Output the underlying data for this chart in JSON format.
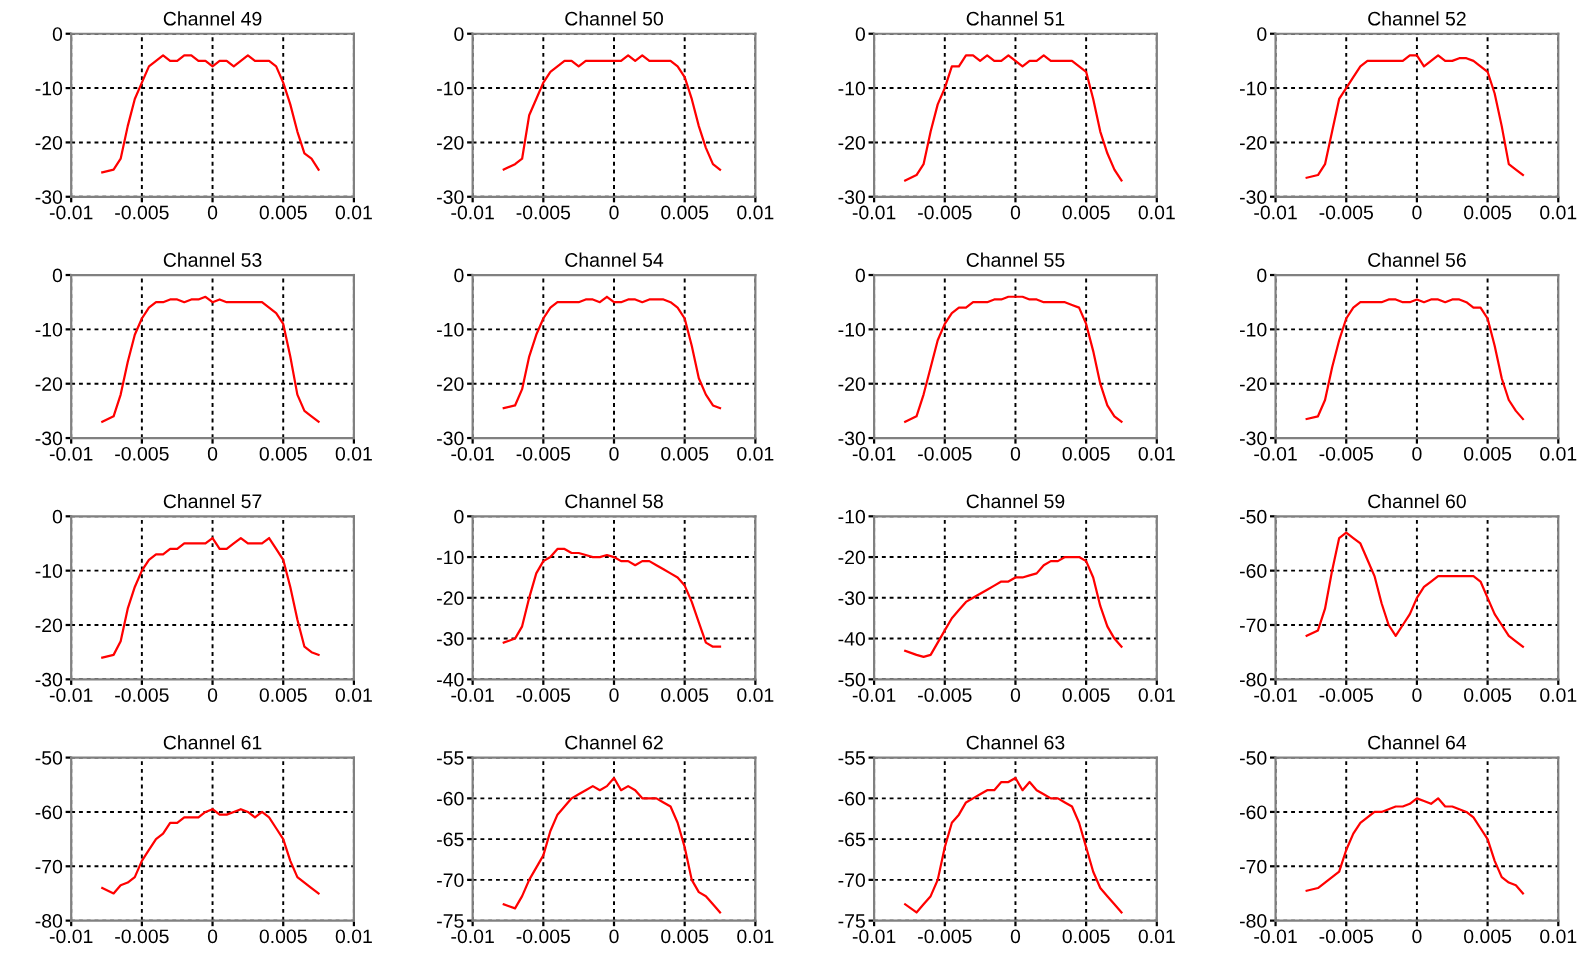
{
  "chart_data": [
    {
      "type": "line",
      "title": "Channel 49",
      "color": "#ff0000",
      "grid": true,
      "xlim": [
        -0.01,
        0.01
      ],
      "xticks": [
        -0.01,
        -0.005,
        0,
        0.005,
        0.01
      ],
      "ylim": [
        -30,
        0
      ],
      "yticks": [
        -30,
        -20,
        -10,
        0
      ],
      "x": [
        -0.0078,
        -0.007,
        -0.0065,
        -0.006,
        -0.0055,
        -0.005,
        -0.0045,
        -0.004,
        -0.0035,
        -0.003,
        -0.0025,
        -0.002,
        -0.0015,
        -0.001,
        -0.0005,
        0,
        0.0005,
        0.001,
        0.0015,
        0.002,
        0.0025,
        0.003,
        0.0035,
        0.004,
        0.0045,
        0.005,
        0.0055,
        0.006,
        0.0065,
        0.007,
        0.0075
      ],
      "values": [
        -25.5,
        -25,
        -23,
        -17,
        -12,
        -9,
        -6,
        -5,
        -4,
        -5,
        -5,
        -4,
        -4,
        -5,
        -5,
        -6,
        -5,
        -5,
        -6,
        -5,
        -4,
        -5,
        -5,
        -5,
        -6,
        -9,
        -13,
        -18,
        -22,
        -23,
        -25
      ]
    },
    {
      "type": "line",
      "title": "Channel 50",
      "color": "#ff0000",
      "grid": true,
      "xlim": [
        -0.01,
        0.01
      ],
      "xticks": [
        -0.01,
        -0.005,
        0,
        0.005,
        0.01
      ],
      "ylim": [
        -30,
        0
      ],
      "yticks": [
        -30,
        -20,
        -10,
        0
      ],
      "x": [
        -0.0078,
        -0.007,
        -0.0065,
        -0.006,
        -0.0055,
        -0.005,
        -0.0045,
        -0.004,
        -0.0035,
        -0.003,
        -0.0025,
        -0.002,
        -0.0015,
        -0.001,
        -0.0005,
        0,
        0.0005,
        0.001,
        0.0015,
        0.002,
        0.0025,
        0.003,
        0.0035,
        0.004,
        0.0045,
        0.005,
        0.0055,
        0.006,
        0.0065,
        0.007,
        0.0075
      ],
      "values": [
        -25,
        -24,
        -23,
        -15,
        -12,
        -9,
        -7,
        -6,
        -5,
        -5,
        -6,
        -5,
        -5,
        -5,
        -5,
        -5,
        -5,
        -4,
        -5,
        -4,
        -5,
        -5,
        -5,
        -5,
        -6,
        -8,
        -12,
        -17,
        -21,
        -24,
        -25
      ]
    },
    {
      "type": "line",
      "title": "Channel 51",
      "color": "#ff0000",
      "grid": true,
      "xlim": [
        -0.01,
        0.01
      ],
      "xticks": [
        -0.01,
        -0.005,
        0,
        0.005,
        0.01
      ],
      "ylim": [
        -30,
        0
      ],
      "yticks": [
        -30,
        -20,
        -10,
        0
      ],
      "x": [
        -0.0078,
        -0.007,
        -0.0065,
        -0.006,
        -0.0055,
        -0.005,
        -0.0045,
        -0.004,
        -0.0035,
        -0.003,
        -0.0025,
        -0.002,
        -0.0015,
        -0.001,
        -0.0005,
        0,
        0.0005,
        0.001,
        0.0015,
        0.002,
        0.0025,
        0.003,
        0.0035,
        0.004,
        0.0045,
        0.005,
        0.0055,
        0.006,
        0.0065,
        0.007,
        0.0075
      ],
      "values": [
        -27,
        -26,
        -24,
        -18,
        -13,
        -10,
        -6,
        -6,
        -4,
        -4,
        -5,
        -4,
        -5,
        -5,
        -4,
        -5,
        -6,
        -5,
        -5,
        -4,
        -5,
        -5,
        -5,
        -5,
        -6,
        -7,
        -12,
        -18,
        -22,
        -25,
        -27
      ]
    },
    {
      "type": "line",
      "title": "Channel 52",
      "color": "#ff0000",
      "grid": true,
      "xlim": [
        -0.01,
        0.01
      ],
      "xticks": [
        -0.01,
        -0.005,
        0,
        0.005,
        0.01
      ],
      "ylim": [
        -30,
        0
      ],
      "yticks": [
        -30,
        -20,
        -10,
        0
      ],
      "x": [
        -0.0078,
        -0.007,
        -0.0065,
        -0.006,
        -0.0055,
        -0.005,
        -0.0045,
        -0.004,
        -0.0035,
        -0.003,
        -0.0025,
        -0.002,
        -0.0015,
        -0.001,
        -0.0005,
        0,
        0.0005,
        0.001,
        0.0015,
        0.002,
        0.0025,
        0.003,
        0.0035,
        0.004,
        0.0045,
        0.005,
        0.0055,
        0.006,
        0.0065,
        0.007,
        0.0075
      ],
      "values": [
        -26.5,
        -26,
        -24,
        -18,
        -12,
        -10,
        -8,
        -6,
        -5,
        -5,
        -5,
        -5,
        -5,
        -5,
        -4,
        -4,
        -6,
        -5,
        -4,
        -5,
        -5,
        -4.5,
        -4.5,
        -5,
        -6,
        -7,
        -11,
        -17,
        -24,
        -25,
        -26
      ]
    },
    {
      "type": "line",
      "title": "Channel 53",
      "color": "#ff0000",
      "grid": true,
      "xlim": [
        -0.01,
        0.01
      ],
      "xticks": [
        -0.01,
        -0.005,
        0,
        0.005,
        0.01
      ],
      "ylim": [
        -30,
        0
      ],
      "yticks": [
        -30,
        -20,
        -10,
        0
      ],
      "x": [
        -0.0078,
        -0.007,
        -0.0065,
        -0.006,
        -0.0055,
        -0.005,
        -0.0045,
        -0.004,
        -0.0035,
        -0.003,
        -0.0025,
        -0.002,
        -0.0015,
        -0.001,
        -0.0005,
        0,
        0.0005,
        0.001,
        0.0015,
        0.002,
        0.0025,
        0.003,
        0.0035,
        0.004,
        0.0045,
        0.005,
        0.0055,
        0.006,
        0.0065,
        0.007,
        0.0075
      ],
      "values": [
        -27,
        -26,
        -22,
        -16,
        -11,
        -8,
        -6,
        -5,
        -5,
        -4.5,
        -4.5,
        -5,
        -4.5,
        -4.5,
        -4,
        -5,
        -4.5,
        -5,
        -5,
        -5,
        -5,
        -5,
        -5,
        -6,
        -7,
        -9,
        -15,
        -22,
        -25,
        -26,
        -27
      ]
    },
    {
      "type": "line",
      "title": "Channel 54",
      "color": "#ff0000",
      "grid": true,
      "xlim": [
        -0.01,
        0.01
      ],
      "xticks": [
        -0.01,
        -0.005,
        0,
        0.005,
        0.01
      ],
      "ylim": [
        -30,
        0
      ],
      "yticks": [
        -30,
        -20,
        -10,
        0
      ],
      "x": [
        -0.0078,
        -0.007,
        -0.0065,
        -0.006,
        -0.0055,
        -0.005,
        -0.0045,
        -0.004,
        -0.0035,
        -0.003,
        -0.0025,
        -0.002,
        -0.0015,
        -0.001,
        -0.0005,
        0,
        0.0005,
        0.001,
        0.0015,
        0.002,
        0.0025,
        0.003,
        0.0035,
        0.004,
        0.0045,
        0.005,
        0.0055,
        0.006,
        0.0065,
        0.007,
        0.0075
      ],
      "values": [
        -24.5,
        -24,
        -21,
        -15,
        -11,
        -8,
        -6,
        -5,
        -5,
        -5,
        -5,
        -4.5,
        -4.5,
        -5,
        -4,
        -5,
        -5,
        -4.5,
        -4.5,
        -5,
        -4.5,
        -4.5,
        -4.5,
        -5,
        -6,
        -8,
        -13,
        -19,
        -22,
        -24,
        -24.5
      ]
    },
    {
      "type": "line",
      "title": "Channel 55",
      "color": "#ff0000",
      "grid": true,
      "xlim": [
        -0.01,
        0.01
      ],
      "xticks": [
        -0.01,
        -0.005,
        0,
        0.005,
        0.01
      ],
      "ylim": [
        -30,
        0
      ],
      "yticks": [
        -30,
        -20,
        -10,
        0
      ],
      "x": [
        -0.0078,
        -0.007,
        -0.0065,
        -0.006,
        -0.0055,
        -0.005,
        -0.0045,
        -0.004,
        -0.0035,
        -0.003,
        -0.0025,
        -0.002,
        -0.0015,
        -0.001,
        -0.0005,
        0,
        0.0005,
        0.001,
        0.0015,
        0.002,
        0.0025,
        0.003,
        0.0035,
        0.004,
        0.0045,
        0.005,
        0.0055,
        0.006,
        0.0065,
        0.007,
        0.0075
      ],
      "values": [
        -27,
        -26,
        -22,
        -17,
        -12,
        -9,
        -7,
        -6,
        -6,
        -5,
        -5,
        -5,
        -4.5,
        -4.5,
        -4,
        -4,
        -4,
        -4.5,
        -4.5,
        -5,
        -5,
        -5,
        -5,
        -5.5,
        -6,
        -9,
        -14,
        -20,
        -24,
        -26,
        -27
      ]
    },
    {
      "type": "line",
      "title": "Channel 56",
      "color": "#ff0000",
      "grid": true,
      "xlim": [
        -0.01,
        0.01
      ],
      "xticks": [
        -0.01,
        -0.005,
        0,
        0.005,
        0.01
      ],
      "ylim": [
        -30,
        0
      ],
      "yticks": [
        -30,
        -20,
        -10,
        0
      ],
      "x": [
        -0.0078,
        -0.007,
        -0.0065,
        -0.006,
        -0.0055,
        -0.005,
        -0.0045,
        -0.004,
        -0.0035,
        -0.003,
        -0.0025,
        -0.002,
        -0.0015,
        -0.001,
        -0.0005,
        0,
        0.0005,
        0.001,
        0.0015,
        0.002,
        0.0025,
        0.003,
        0.0035,
        0.004,
        0.0045,
        0.005,
        0.0055,
        0.006,
        0.0065,
        0.007,
        0.0075
      ],
      "values": [
        -26.5,
        -26,
        -23,
        -17,
        -12,
        -8,
        -6,
        -5,
        -5,
        -5,
        -5,
        -4.5,
        -4.5,
        -5,
        -5,
        -4.5,
        -5,
        -4.5,
        -4.5,
        -5,
        -4.5,
        -4.5,
        -5,
        -6,
        -6,
        -8,
        -13,
        -19,
        -23,
        -25,
        -26.5
      ]
    },
    {
      "type": "line",
      "title": "Channel 57",
      "color": "#ff0000",
      "grid": true,
      "xlim": [
        -0.01,
        0.01
      ],
      "xticks": [
        -0.01,
        -0.005,
        0,
        0.005,
        0.01
      ],
      "ylim": [
        -30,
        0
      ],
      "yticks": [
        -30,
        -20,
        -10,
        0
      ],
      "x": [
        -0.0078,
        -0.007,
        -0.0065,
        -0.006,
        -0.0055,
        -0.005,
        -0.0045,
        -0.004,
        -0.0035,
        -0.003,
        -0.0025,
        -0.002,
        -0.0015,
        -0.001,
        -0.0005,
        0,
        0.0005,
        0.001,
        0.0015,
        0.002,
        0.0025,
        0.003,
        0.0035,
        0.004,
        0.0045,
        0.005,
        0.0055,
        0.006,
        0.0065,
        0.007,
        0.0075
      ],
      "values": [
        -26,
        -25.5,
        -23,
        -17,
        -13,
        -10,
        -8,
        -7,
        -7,
        -6,
        -6,
        -5,
        -5,
        -5,
        -5,
        -4,
        -6,
        -6,
        -5,
        -4,
        -5,
        -5,
        -5,
        -4,
        -6,
        -8,
        -13,
        -19,
        -24,
        -25,
        -25.5
      ]
    },
    {
      "type": "line",
      "title": "Channel 58",
      "color": "#ff0000",
      "grid": true,
      "xlim": [
        -0.01,
        0.01
      ],
      "xticks": [
        -0.01,
        -0.005,
        0,
        0.005,
        0.01
      ],
      "ylim": [
        -40,
        0
      ],
      "yticks": [
        -40,
        -30,
        -20,
        -10,
        0
      ],
      "x": [
        -0.0078,
        -0.007,
        -0.0065,
        -0.006,
        -0.0055,
        -0.005,
        -0.0045,
        -0.004,
        -0.0035,
        -0.003,
        -0.0025,
        -0.002,
        -0.0015,
        -0.001,
        -0.0005,
        0,
        0.0005,
        0.001,
        0.0015,
        0.002,
        0.0025,
        0.003,
        0.0035,
        0.004,
        0.0045,
        0.005,
        0.0055,
        0.006,
        0.0065,
        0.007,
        0.0075
      ],
      "values": [
        -31,
        -30,
        -27,
        -20,
        -14,
        -11,
        -10,
        -8,
        -8,
        -9,
        -9,
        -9.5,
        -10,
        -10,
        -9.5,
        -10,
        -11,
        -11,
        -12,
        -11,
        -11,
        -12,
        -13,
        -14,
        -15,
        -17,
        -21,
        -26,
        -31,
        -32,
        -32
      ]
    },
    {
      "type": "line",
      "title": "Channel 59",
      "color": "#ff0000",
      "grid": true,
      "xlim": [
        -0.01,
        0.01
      ],
      "xticks": [
        -0.01,
        -0.005,
        0,
        0.005,
        0.01
      ],
      "ylim": [
        -50,
        -10
      ],
      "yticks": [
        -50,
        -40,
        -30,
        -20,
        -10
      ],
      "x": [
        -0.0078,
        -0.007,
        -0.0065,
        -0.006,
        -0.0055,
        -0.005,
        -0.0045,
        -0.004,
        -0.0035,
        -0.003,
        -0.0025,
        -0.002,
        -0.0015,
        -0.001,
        -0.0005,
        0,
        0.0005,
        0.001,
        0.0015,
        0.002,
        0.0025,
        0.003,
        0.0035,
        0.004,
        0.0045,
        0.005,
        0.0055,
        0.006,
        0.0065,
        0.007,
        0.0075
      ],
      "values": [
        -43,
        -44,
        -44.5,
        -44,
        -41,
        -38,
        -35,
        -33,
        -31,
        -30,
        -29,
        -28,
        -27,
        -26,
        -26,
        -25,
        -25,
        -24.5,
        -24,
        -22,
        -21,
        -21,
        -20,
        -20,
        -20,
        -21,
        -25,
        -32,
        -37,
        -40,
        -42
      ]
    },
    {
      "type": "line",
      "title": "Channel 60",
      "color": "#ff0000",
      "grid": true,
      "xlim": [
        -0.01,
        0.01
      ],
      "xticks": [
        -0.01,
        -0.005,
        0,
        0.005,
        0.01
      ],
      "ylim": [
        -80,
        -50
      ],
      "yticks": [
        -80,
        -70,
        -60,
        -50
      ],
      "x": [
        -0.0078,
        -0.007,
        -0.0065,
        -0.006,
        -0.0055,
        -0.005,
        -0.0045,
        -0.004,
        -0.0035,
        -0.003,
        -0.0025,
        -0.002,
        -0.0015,
        -0.001,
        -0.0005,
        0,
        0.0005,
        0.001,
        0.0015,
        0.002,
        0.0025,
        0.003,
        0.0035,
        0.004,
        0.0045,
        0.005,
        0.0055,
        0.006,
        0.0065,
        0.007,
        0.0075
      ],
      "values": [
        -72,
        -71,
        -67,
        -60,
        -54,
        -53,
        -54,
        -55,
        -58,
        -61,
        -66,
        -70,
        -72,
        -70,
        -68,
        -65,
        -63,
        -62,
        -61,
        -61,
        -61,
        -61,
        -61,
        -61,
        -62,
        -65,
        -68,
        -70,
        -72,
        -73,
        -74
      ]
    },
    {
      "type": "line",
      "title": "Channel 61",
      "color": "#ff0000",
      "grid": true,
      "xlim": [
        -0.01,
        0.01
      ],
      "xticks": [
        -0.01,
        -0.005,
        0,
        0.005,
        0.01
      ],
      "ylim": [
        -80,
        -50
      ],
      "yticks": [
        -80,
        -70,
        -60,
        -50
      ],
      "x": [
        -0.0078,
        -0.007,
        -0.0065,
        -0.006,
        -0.0055,
        -0.005,
        -0.0045,
        -0.004,
        -0.0035,
        -0.003,
        -0.0025,
        -0.002,
        -0.0015,
        -0.001,
        -0.0005,
        0,
        0.0005,
        0.001,
        0.0015,
        0.002,
        0.0025,
        0.003,
        0.0035,
        0.004,
        0.0045,
        0.005,
        0.0055,
        0.006,
        0.0065,
        0.007,
        0.0075
      ],
      "values": [
        -74,
        -75,
        -73.5,
        -73,
        -72,
        -69,
        -67,
        -65,
        -64,
        -62,
        -62,
        -61,
        -61,
        -61,
        -60,
        -59.5,
        -60.5,
        -60.5,
        -60,
        -59.5,
        -60,
        -61,
        -60,
        -61,
        -63,
        -65,
        -69,
        -72,
        -73,
        -74,
        -75
      ]
    },
    {
      "type": "line",
      "title": "Channel 62",
      "color": "#ff0000",
      "grid": true,
      "xlim": [
        -0.01,
        0.01
      ],
      "xticks": [
        -0.01,
        -0.005,
        0,
        0.005,
        0.01
      ],
      "ylim": [
        -75,
        -55
      ],
      "yticks": [
        -75,
        -70,
        -65,
        -60,
        -55
      ],
      "x": [
        -0.0078,
        -0.007,
        -0.0065,
        -0.006,
        -0.0055,
        -0.005,
        -0.0045,
        -0.004,
        -0.0035,
        -0.003,
        -0.0025,
        -0.002,
        -0.0015,
        -0.001,
        -0.0005,
        0,
        0.0005,
        0.001,
        0.0015,
        0.002,
        0.0025,
        0.003,
        0.0035,
        0.004,
        0.0045,
        0.005,
        0.0055,
        0.006,
        0.0065,
        0.007,
        0.0075
      ],
      "values": [
        -73,
        -73.5,
        -72,
        -70,
        -68.5,
        -67,
        -64,
        -62,
        -61,
        -60,
        -59.5,
        -59,
        -58.5,
        -59,
        -58.5,
        -57.5,
        -59,
        -58.5,
        -59,
        -60,
        -60,
        -60,
        -60.5,
        -61,
        -63,
        -66,
        -70,
        -71.5,
        -72,
        -73,
        -74
      ]
    },
    {
      "type": "line",
      "title": "Channel 63",
      "color": "#ff0000",
      "grid": true,
      "xlim": [
        -0.01,
        0.01
      ],
      "xticks": [
        -0.01,
        -0.005,
        0,
        0.005,
        0.01
      ],
      "ylim": [
        -75,
        -55
      ],
      "yticks": [
        -75,
        -70,
        -65,
        -60,
        -55
      ],
      "x": [
        -0.0078,
        -0.007,
        -0.0065,
        -0.006,
        -0.0055,
        -0.005,
        -0.0045,
        -0.004,
        -0.0035,
        -0.003,
        -0.0025,
        -0.002,
        -0.0015,
        -0.001,
        -0.0005,
        0,
        0.0005,
        0.001,
        0.0015,
        0.002,
        0.0025,
        0.003,
        0.0035,
        0.004,
        0.0045,
        0.005,
        0.0055,
        0.006,
        0.0065,
        0.007,
        0.0075
      ],
      "values": [
        -73,
        -74,
        -73,
        -72,
        -70,
        -66,
        -63,
        -62,
        -60.5,
        -60,
        -59.5,
        -59,
        -59,
        -58,
        -58,
        -57.5,
        -59,
        -58,
        -59,
        -59.5,
        -60,
        -60,
        -60.5,
        -61,
        -63,
        -66,
        -69,
        -71,
        -72,
        -73,
        -74
      ]
    },
    {
      "type": "line",
      "title": "Channel 64",
      "color": "#ff0000",
      "grid": true,
      "xlim": [
        -0.01,
        0.01
      ],
      "xticks": [
        -0.01,
        -0.005,
        0,
        0.005,
        0.01
      ],
      "ylim": [
        -80,
        -50
      ],
      "yticks": [
        -80,
        -70,
        -60,
        -50
      ],
      "x": [
        -0.0078,
        -0.007,
        -0.0065,
        -0.006,
        -0.0055,
        -0.005,
        -0.0045,
        -0.004,
        -0.0035,
        -0.003,
        -0.0025,
        -0.002,
        -0.0015,
        -0.001,
        -0.0005,
        0,
        0.0005,
        0.001,
        0.0015,
        0.002,
        0.0025,
        0.003,
        0.0035,
        0.004,
        0.0045,
        0.005,
        0.0055,
        0.006,
        0.0065,
        0.007,
        0.0075
      ],
      "values": [
        -74.5,
        -74,
        -73,
        -72,
        -71,
        -67,
        -64,
        -62,
        -61,
        -60,
        -60,
        -59.5,
        -59,
        -59,
        -58.5,
        -57.5,
        -58,
        -58.5,
        -57.5,
        -59,
        -59,
        -59.5,
        -60,
        -61,
        -63,
        -65,
        -69,
        -72,
        -73,
        -73.5,
        -75
      ]
    }
  ]
}
